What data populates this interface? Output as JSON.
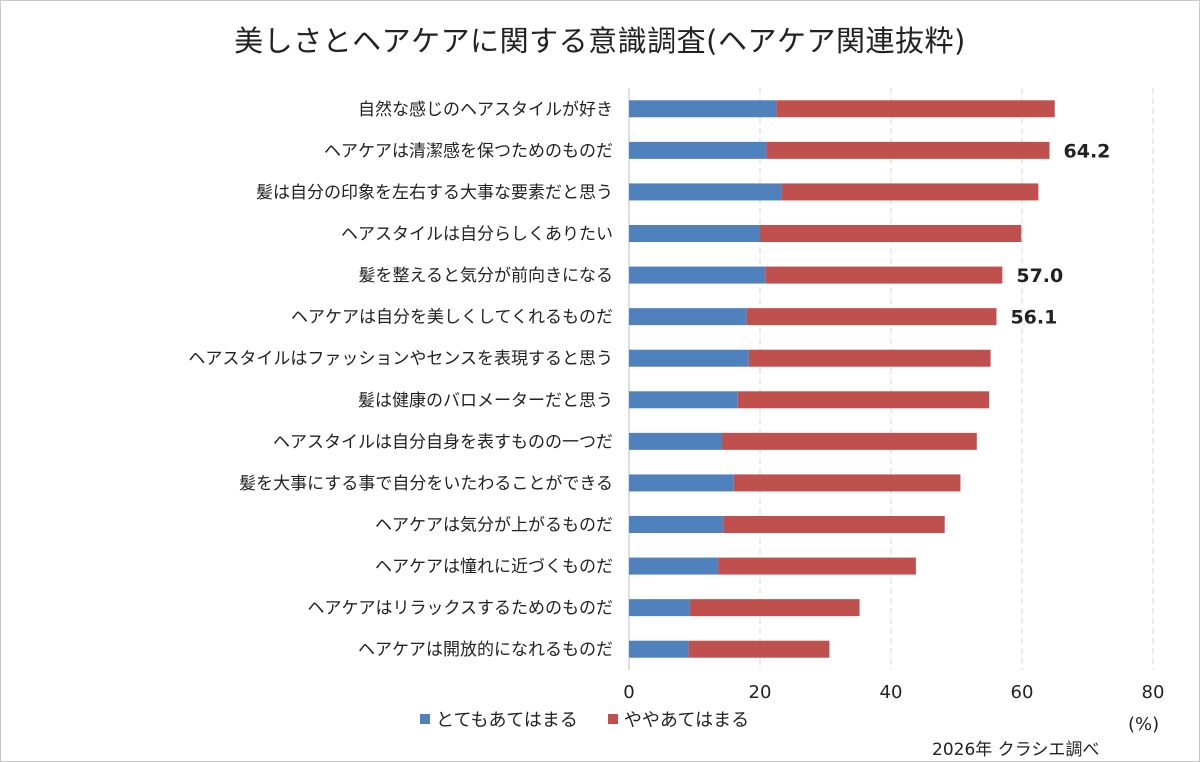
{
  "title": "美しさとヘアケアに関する意識調査(ヘアケア関連抜粋)",
  "unit_label": "(%)",
  "source": "2026年 クラシエ調べ",
  "colors": {
    "series1": "#4f81bd",
    "series2": "#c0504d",
    "grid": "#d9d9d9"
  },
  "chart_data": {
    "type": "bar",
    "orientation": "horizontal",
    "stacked": true,
    "categories": [
      "自然な感じのヘアスタイルが好き",
      "ヘアケアは清潔感を保つためのものだ",
      "髪は自分の印象を左右する大事な要素だと思う",
      "ヘアスタイルは自分らしくありたい",
      "髪を整えると気分が前向きになる",
      "ヘアケアは自分を美しくしてくれるものだ",
      "ヘアスタイルはファッションやセンスを表現すると思う",
      "髪は健康のバロメーターだと思う",
      "ヘアスタイルは自分自身を表すものの一つだ",
      "髪を大事にする事で自分をいたわることができる",
      "ヘアケアは気分が上がるものだ",
      "ヘアケアは憧れに近づくものだ",
      "ヘアケアはリラックスするためのものだ",
      "ヘアケアは開放的になれるものだ"
    ],
    "series": [
      {
        "name": "とてもあてはまる",
        "values": [
          22.5,
          21.0,
          23.3,
          20.0,
          20.8,
          18.0,
          18.3,
          16.6,
          14.2,
          16.0,
          14.4,
          13.6,
          9.3,
          9.1
        ]
      },
      {
        "name": "ややあてはまる",
        "values": [
          42.5,
          43.2,
          39.2,
          39.9,
          36.2,
          38.1,
          36.9,
          38.4,
          38.9,
          34.6,
          33.8,
          30.2,
          25.9,
          21.5
        ]
      }
    ],
    "data_labels": [
      {
        "index": 1,
        "text": "64.2"
      },
      {
        "index": 4,
        "text": "57.0"
      },
      {
        "index": 5,
        "text": "56.1"
      }
    ],
    "xlim": [
      0,
      80
    ],
    "xticks": [
      "0",
      "20",
      "40",
      "60",
      "80"
    ],
    "xtick_values": [
      0,
      20,
      40,
      60,
      80
    ],
    "grid": "vertical dashed",
    "legend_position": "bottom"
  }
}
